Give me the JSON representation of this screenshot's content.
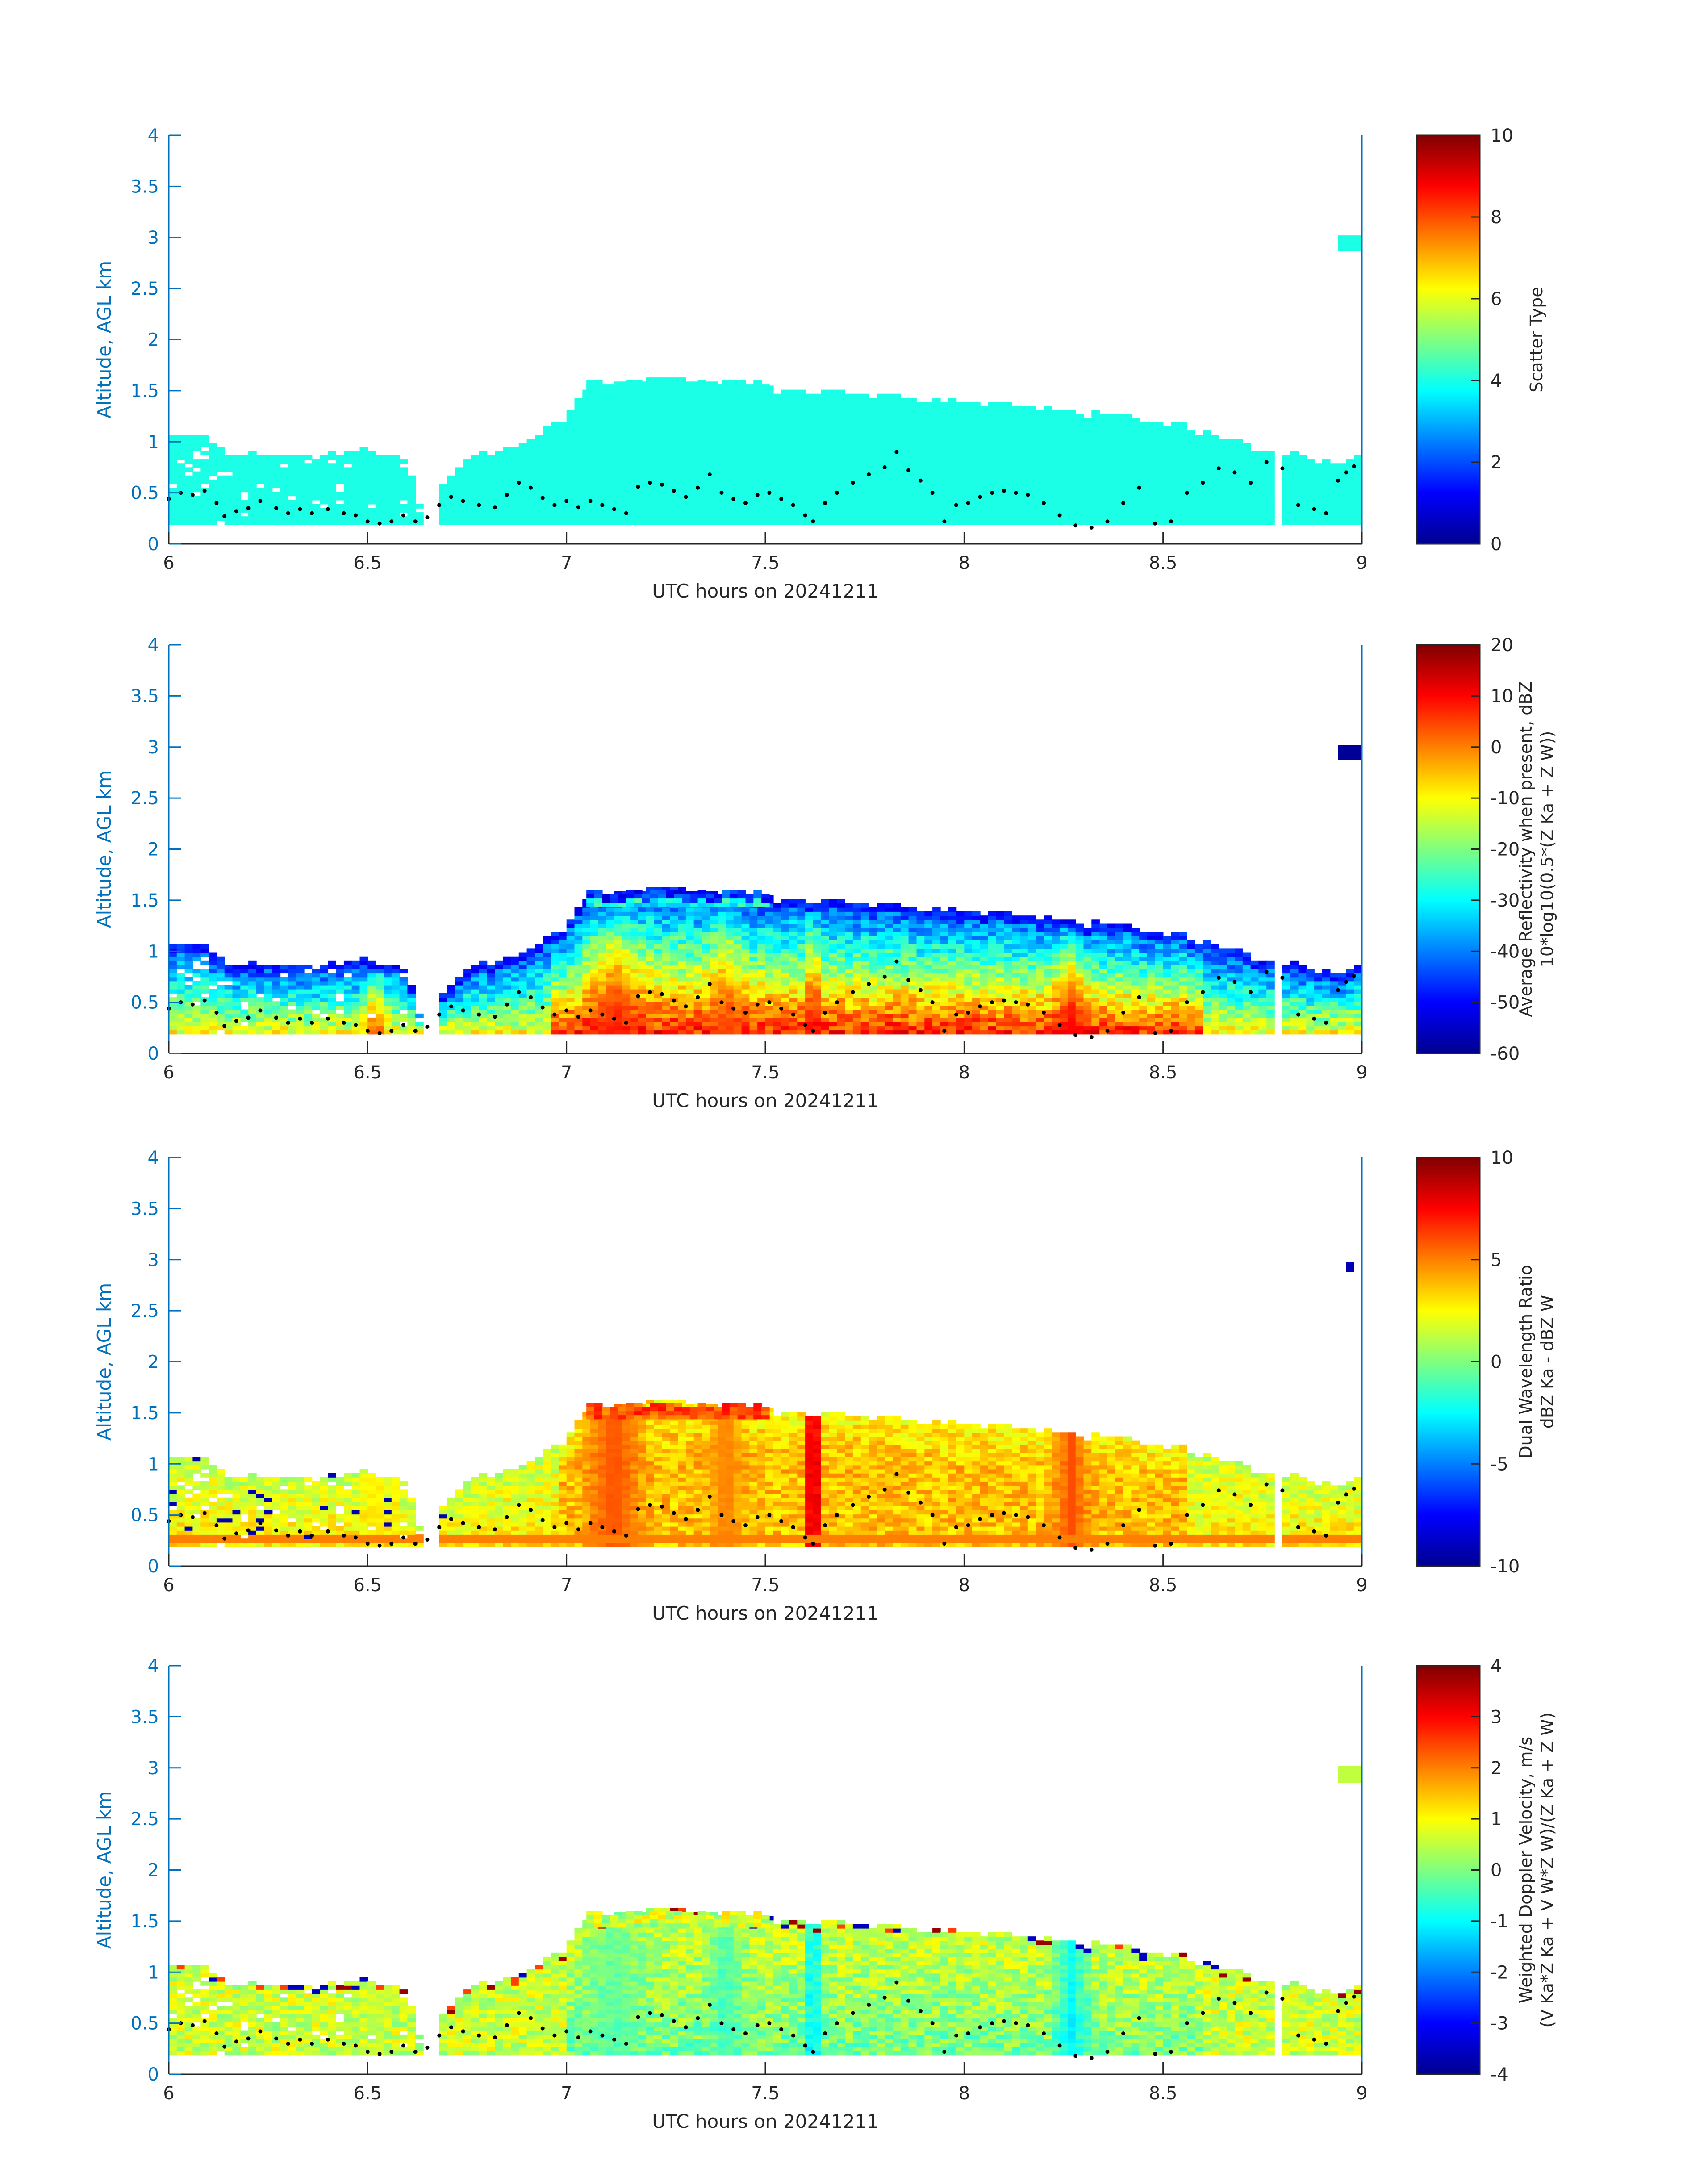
{
  "figure": {
    "date_label": "UTC hours on 20241211",
    "axis_color": "#0072BD"
  },
  "chart_data": [
    {
      "type": "heatmap",
      "title": "",
      "xlabel": "UTC hours on 20241211",
      "ylabel": "Altitude, AGL km",
      "xlim": [
        6,
        9
      ],
      "ylim": [
        0,
        4
      ],
      "xticks": [
        "6",
        "6.5",
        "7",
        "7.5",
        "8",
        "8.5",
        "9"
      ],
      "yticks": [
        "0",
        "0.5",
        "1",
        "1.5",
        "2",
        "2.5",
        "3",
        "3.5",
        "4"
      ],
      "colorbar": {
        "label": [
          "Scatter Type"
        ],
        "range": [
          0,
          10
        ],
        "ticks": [
          "0",
          "2",
          "4",
          "6",
          "8",
          "10"
        ]
      },
      "field": "scatter_type",
      "cloud_value": 4,
      "isolated_patch": {
        "x": [
          8.94,
          9.0
        ],
        "y": [
          2.87,
          3.02
        ],
        "value": 4
      }
    },
    {
      "type": "heatmap",
      "title": "",
      "xlabel": "UTC hours on 20241211",
      "ylabel": "Altitude, AGL km",
      "xlim": [
        6,
        9
      ],
      "ylim": [
        0,
        4
      ],
      "xticks": [
        "6",
        "6.5",
        "7",
        "7.5",
        "8",
        "8.5",
        "9"
      ],
      "yticks": [
        "0",
        "0.5",
        "1",
        "1.5",
        "2",
        "2.5",
        "3",
        "3.5",
        "4"
      ],
      "colorbar": {
        "label": [
          "Average Reflectivity when present, dBZ",
          "10*log10(0.5*(Z Ka + Z W))"
        ],
        "range": [
          -60,
          20
        ],
        "ticks": [
          "-60",
          "-50",
          "-40",
          "-30",
          "-20",
          "-10",
          "0",
          "10",
          "20"
        ]
      },
      "field": "reflectivity",
      "isolated_patch": {
        "x": [
          8.94,
          9.0
        ],
        "y": [
          2.87,
          3.02
        ],
        "value": -58
      }
    },
    {
      "type": "heatmap",
      "title": "",
      "xlabel": "UTC hours on 20241211",
      "ylabel": "Altitude, AGL km",
      "xlim": [
        6,
        9
      ],
      "ylim": [
        0,
        4
      ],
      "xticks": [
        "6",
        "6.5",
        "7",
        "7.5",
        "8",
        "8.5",
        "9"
      ],
      "yticks": [
        "0",
        "0.5",
        "1",
        "1.5",
        "2",
        "2.5",
        "3",
        "3.5",
        "4"
      ],
      "colorbar": {
        "label": [
          "Dual Wavelength Ratio",
          "dBZ Ka - dBZ W"
        ],
        "range": [
          -10,
          10
        ],
        "ticks": [
          "-10",
          "-5",
          "0",
          "5",
          "10"
        ]
      },
      "field": "dwr",
      "isolated_patch": {
        "x": [
          8.96,
          8.98
        ],
        "y": [
          2.88,
          2.98
        ],
        "value": -9
      }
    },
    {
      "type": "heatmap",
      "title": "",
      "xlabel": "UTC hours on 20241211",
      "ylabel": "Altitude, AGL km",
      "xlim": [
        6,
        9
      ],
      "ylim": [
        0,
        4
      ],
      "xticks": [
        "6",
        "6.5",
        "7",
        "7.5",
        "8",
        "8.5",
        "9"
      ],
      "yticks": [
        "0",
        "0.5",
        "1",
        "1.5",
        "2",
        "2.5",
        "3",
        "3.5",
        "4"
      ],
      "colorbar": {
        "label": [
          "Weighted Doppler Velocity, m/s",
          "(V Ka*Z Ka + V W*Z W)/(Z Ka + Z W)"
        ],
        "range": [
          -4,
          4
        ],
        "ticks": [
          "-4",
          "-3",
          "-2",
          "-1",
          "0",
          "1",
          "2",
          "3",
          "4"
        ]
      },
      "field": "velocity",
      "isolated_patch": {
        "x": [
          8.94,
          9.0
        ],
        "y": [
          2.85,
          3.02
        ],
        "value": 0.5
      }
    }
  ],
  "cloud_profile": {
    "base_km": 0.19,
    "top_km": [
      [
        6.0,
        1.0
      ],
      [
        6.06,
        1.08
      ],
      [
        6.1,
        1.02
      ],
      [
        6.15,
        0.88
      ],
      [
        6.2,
        0.86
      ],
      [
        6.3,
        0.86
      ],
      [
        6.4,
        0.85
      ],
      [
        6.48,
        0.9
      ],
      [
        6.52,
        0.88
      ],
      [
        6.58,
        0.82
      ],
      [
        6.6,
        0.78
      ],
      [
        6.65,
        0.3
      ],
      [
        6.7,
        0.62
      ],
      [
        6.75,
        0.82
      ],
      [
        6.8,
        0.88
      ],
      [
        6.9,
        0.98
      ],
      [
        6.95,
        1.12
      ],
      [
        7.0,
        1.22
      ],
      [
        7.05,
        1.5
      ],
      [
        7.15,
        1.55
      ],
      [
        7.25,
        1.6
      ],
      [
        7.35,
        1.6
      ],
      [
        7.4,
        1.55
      ],
      [
        7.45,
        1.52
      ],
      [
        7.55,
        1.48
      ],
      [
        7.7,
        1.45
      ],
      [
        7.85,
        1.42
      ],
      [
        7.95,
        1.38
      ],
      [
        8.1,
        1.35
      ],
      [
        8.25,
        1.28
      ],
      [
        8.4,
        1.22
      ],
      [
        8.55,
        1.15
      ],
      [
        8.6,
        1.08
      ],
      [
        8.7,
        0.98
      ],
      [
        8.75,
        0.88
      ],
      [
        8.85,
        0.86
      ],
      [
        8.9,
        0.8
      ],
      [
        8.94,
        0.76
      ],
      [
        8.97,
        0.84
      ],
      [
        9.0,
        0.88
      ]
    ],
    "upper_layer": {
      "x": [
        7.05,
        7.5
      ],
      "bottom_km": 1.32,
      "top_km": 1.6
    },
    "gaps": [
      [
        6.63,
        6.67
      ],
      [
        8.78,
        8.8
      ]
    ],
    "boundary_dots": [
      [
        6.0,
        0.44
      ],
      [
        6.03,
        0.5
      ],
      [
        6.06,
        0.48
      ],
      [
        6.09,
        0.52
      ],
      [
        6.12,
        0.4
      ],
      [
        6.14,
        0.27
      ],
      [
        6.17,
        0.32
      ],
      [
        6.2,
        0.35
      ],
      [
        6.23,
        0.42
      ],
      [
        6.27,
        0.35
      ],
      [
        6.3,
        0.3
      ],
      [
        6.33,
        0.34
      ],
      [
        6.36,
        0.3
      ],
      [
        6.4,
        0.34
      ],
      [
        6.44,
        0.3
      ],
      [
        6.47,
        0.28
      ],
      [
        6.5,
        0.22
      ],
      [
        6.53,
        0.2
      ],
      [
        6.56,
        0.22
      ],
      [
        6.59,
        0.28
      ],
      [
        6.62,
        0.22
      ],
      [
        6.65,
        0.26
      ],
      [
        6.68,
        0.38
      ],
      [
        6.71,
        0.46
      ],
      [
        6.74,
        0.42
      ],
      [
        6.78,
        0.38
      ],
      [
        6.82,
        0.36
      ],
      [
        6.85,
        0.48
      ],
      [
        6.88,
        0.6
      ],
      [
        6.91,
        0.55
      ],
      [
        6.94,
        0.45
      ],
      [
        6.97,
        0.38
      ],
      [
        7.0,
        0.42
      ],
      [
        7.03,
        0.36
      ],
      [
        7.06,
        0.42
      ],
      [
        7.09,
        0.38
      ],
      [
        7.12,
        0.34
      ],
      [
        7.15,
        0.3
      ],
      [
        7.18,
        0.56
      ],
      [
        7.21,
        0.6
      ],
      [
        7.24,
        0.58
      ],
      [
        7.27,
        0.52
      ],
      [
        7.3,
        0.46
      ],
      [
        7.33,
        0.55
      ],
      [
        7.36,
        0.68
      ],
      [
        7.39,
        0.5
      ],
      [
        7.42,
        0.44
      ],
      [
        7.45,
        0.4
      ],
      [
        7.48,
        0.48
      ],
      [
        7.51,
        0.5
      ],
      [
        7.54,
        0.44
      ],
      [
        7.57,
        0.38
      ],
      [
        7.6,
        0.28
      ],
      [
        7.62,
        0.22
      ],
      [
        7.65,
        0.4
      ],
      [
        7.68,
        0.5
      ],
      [
        7.72,
        0.6
      ],
      [
        7.76,
        0.68
      ],
      [
        7.8,
        0.75
      ],
      [
        7.83,
        0.9
      ],
      [
        7.86,
        0.72
      ],
      [
        7.89,
        0.62
      ],
      [
        7.92,
        0.5
      ],
      [
        7.95,
        0.22
      ],
      [
        7.98,
        0.38
      ],
      [
        8.01,
        0.4
      ],
      [
        8.04,
        0.46
      ],
      [
        8.07,
        0.5
      ],
      [
        8.1,
        0.52
      ],
      [
        8.13,
        0.5
      ],
      [
        8.16,
        0.48
      ],
      [
        8.2,
        0.4
      ],
      [
        8.24,
        0.28
      ],
      [
        8.28,
        0.18
      ],
      [
        8.32,
        0.16
      ],
      [
        8.36,
        0.22
      ],
      [
        8.4,
        0.4
      ],
      [
        8.44,
        0.55
      ],
      [
        8.48,
        0.2
      ],
      [
        8.52,
        0.22
      ],
      [
        8.56,
        0.5
      ],
      [
        8.6,
        0.6
      ],
      [
        8.64,
        0.74
      ],
      [
        8.68,
        0.7
      ],
      [
        8.72,
        0.6
      ],
      [
        8.76,
        0.8
      ],
      [
        8.8,
        0.74
      ],
      [
        8.84,
        0.38
      ],
      [
        8.88,
        0.34
      ],
      [
        8.91,
        0.3
      ],
      [
        8.94,
        0.62
      ],
      [
        8.96,
        0.7
      ],
      [
        8.98,
        0.76
      ]
    ]
  },
  "heavy_columns": [
    {
      "x": 7.62,
      "width": 0.03,
      "dwr": 9.5,
      "refl": 12,
      "vel": -2
    },
    {
      "x": 7.12,
      "width": 0.1,
      "dwr": 6,
      "refl": 8,
      "vel": -0.5
    },
    {
      "x": 8.27,
      "width": 0.06,
      "dwr": 6,
      "refl": 10,
      "vel": -1.5
    },
    {
      "x": 7.4,
      "width": 0.06,
      "dwr": 5,
      "refl": 4,
      "vel": -0.8
    },
    {
      "x": 6.52,
      "width": 0.04,
      "dwr": 3,
      "refl": 6,
      "vel": 0.5
    }
  ]
}
